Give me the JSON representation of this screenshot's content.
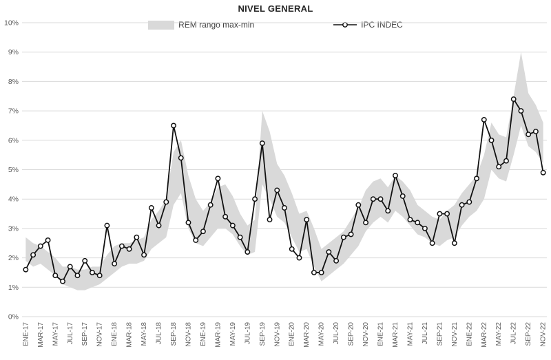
{
  "title": "NIVEL GENERAL",
  "legend": {
    "band_label": "REM rango max-min",
    "line_label": "IPC INDEC"
  },
  "colors": {
    "band": "#d9d9d9",
    "line": "#111111",
    "marker_fill": "#ffffff",
    "grid": "#d9d9d9",
    "axis_text": "#595959",
    "title_text": "#262626"
  },
  "chart_data": {
    "type": "line",
    "title": "NIVEL GENERAL",
    "legend_position": "top",
    "grid": true,
    "ylim": [
      0,
      10
    ],
    "y_ticks": [
      "0%",
      "1%",
      "2%",
      "3%",
      "4%",
      "5%",
      "6%",
      "7%",
      "8%",
      "9%",
      "10%"
    ],
    "x_tick_every": 2,
    "x": [
      "ENE-17",
      "FEB-17",
      "MAR-17",
      "ABR-17",
      "MAY-17",
      "JUN-17",
      "JUL-17",
      "AGO-17",
      "SEP-17",
      "OCT-17",
      "NOV-17",
      "DIC-17",
      "ENE-18",
      "FEB-18",
      "MAR-18",
      "ABR-18",
      "MAY-18",
      "JUN-18",
      "JUL-18",
      "AGO-18",
      "SEP-18",
      "OCT-18",
      "NOV-18",
      "DIC-18",
      "ENE-19",
      "FEB-19",
      "MAR-19",
      "ABR-19",
      "MAY-19",
      "JUN-19",
      "JUL-19",
      "AGO-19",
      "SEP-19",
      "OCT-19",
      "NOV-19",
      "DIC-19",
      "ENE-20",
      "FEB-20",
      "MAR-20",
      "ABR-20",
      "MAY-20",
      "JUN-20",
      "JUL-20",
      "AGO-20",
      "SEP-20",
      "OCT-20",
      "NOV-20",
      "DIC-20",
      "ENE-21",
      "FEB-21",
      "MAR-21",
      "ABR-21",
      "MAY-21",
      "JUN-21",
      "JUL-21",
      "AGO-21",
      "SEP-21",
      "OCT-21",
      "NOV-21",
      "DIC-21",
      "ENE-22",
      "FEB-22",
      "MAR-22",
      "ABR-22",
      "MAY-22",
      "JUN-22",
      "JUL-22",
      "AGO-22",
      "SEP-22",
      "OCT-22",
      "NOV-22"
    ],
    "series": [
      {
        "name": "REM rango max-min",
        "type": "band",
        "min": [
          1.9,
          1.7,
          1.8,
          1.6,
          1.4,
          1.1,
          1.0,
          0.9,
          0.9,
          1.0,
          1.1,
          1.3,
          1.5,
          1.7,
          1.8,
          1.8,
          1.9,
          2.3,
          2.5,
          2.7,
          3.8,
          4.2,
          3.0,
          2.5,
          2.4,
          2.7,
          3.0,
          3.0,
          2.8,
          2.4,
          2.1,
          2.2,
          4.5,
          4.0,
          3.4,
          3.2,
          2.7,
          2.2,
          2.3,
          1.7,
          1.2,
          1.4,
          1.6,
          1.8,
          2.1,
          2.4,
          2.9,
          3.2,
          3.4,
          3.2,
          3.6,
          3.4,
          3.1,
          2.8,
          2.7,
          2.5,
          2.4,
          2.6,
          2.7,
          3.1,
          3.4,
          3.6,
          4.0,
          5.0,
          4.7,
          4.6,
          5.5,
          6.5,
          5.8,
          5.6,
          5.2
        ],
        "max": [
          2.7,
          2.5,
          2.4,
          2.2,
          2.0,
          1.7,
          1.7,
          1.6,
          1.6,
          1.7,
          1.7,
          2.1,
          2.4,
          2.5,
          2.5,
          2.6,
          2.7,
          3.3,
          3.6,
          4.0,
          5.6,
          6.0,
          4.8,
          4.0,
          3.6,
          3.9,
          4.4,
          4.5,
          4.1,
          3.5,
          3.1,
          3.3,
          7.0,
          6.3,
          5.2,
          4.8,
          4.2,
          3.5,
          3.6,
          3.0,
          2.3,
          2.5,
          2.7,
          2.9,
          3.3,
          3.7,
          4.3,
          4.6,
          4.7,
          4.4,
          4.8,
          4.6,
          4.3,
          3.8,
          3.6,
          3.4,
          3.3,
          3.6,
          3.8,
          4.2,
          4.5,
          4.8,
          5.5,
          6.6,
          6.2,
          6.1,
          7.5,
          9.0,
          7.6,
          7.2,
          6.6
        ]
      },
      {
        "name": "IPC INDEC",
        "type": "line",
        "values": [
          1.6,
          2.1,
          2.4,
          2.6,
          1.4,
          1.2,
          1.7,
          1.4,
          1.9,
          1.5,
          1.4,
          3.1,
          1.8,
          2.4,
          2.3,
          2.7,
          2.1,
          3.7,
          3.1,
          3.9,
          6.5,
          5.4,
          3.2,
          2.6,
          2.9,
          3.8,
          4.7,
          3.4,
          3.1,
          2.7,
          2.2,
          4.0,
          5.9,
          3.3,
          4.3,
          3.7,
          2.3,
          2.0,
          3.3,
          1.5,
          1.5,
          2.2,
          1.9,
          2.7,
          2.8,
          3.8,
          3.2,
          4.0,
          4.0,
          3.6,
          4.8,
          4.1,
          3.3,
          3.2,
          3.0,
          2.5,
          3.5,
          3.5,
          2.5,
          3.8,
          3.9,
          4.7,
          6.7,
          6.0,
          5.1,
          5.3,
          7.4,
          7.0,
          6.2,
          6.3,
          4.9
        ]
      }
    ]
  }
}
